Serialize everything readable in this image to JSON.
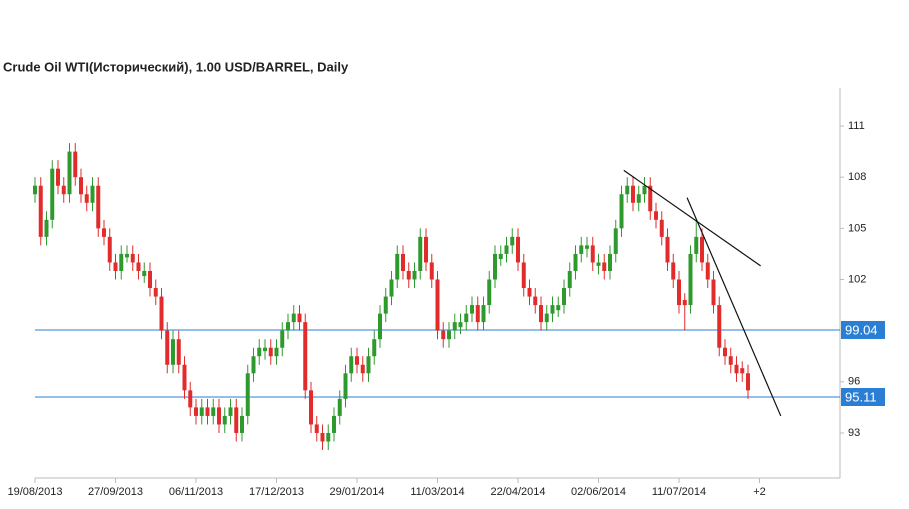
{
  "chart_data": {
    "type": "candlestick",
    "title": "Crude Oil WTI(Исторический), 1.00 USD/BARREL, Daily",
    "ohlc": [
      [
        107,
        108,
        106.5,
        107.5
      ],
      [
        107.5,
        108,
        104,
        104.5
      ],
      [
        104.5,
        106,
        104,
        105.5
      ],
      [
        105.5,
        109,
        105,
        108.5
      ],
      [
        108.5,
        109,
        107,
        107.5
      ],
      [
        107.5,
        108,
        106.5,
        107
      ],
      [
        107,
        110,
        106.5,
        109.5
      ],
      [
        109.5,
        110,
        107.5,
        108
      ],
      [
        108,
        108.5,
        106.5,
        107
      ],
      [
        107,
        107.5,
        106,
        106.5
      ],
      [
        106.5,
        108,
        106,
        107.5
      ],
      [
        107.5,
        108,
        104.5,
        105
      ],
      [
        105,
        105.5,
        104,
        104.5
      ],
      [
        104.5,
        105,
        102.5,
        103
      ],
      [
        103,
        103.5,
        102,
        102.5
      ],
      [
        102.5,
        104,
        102,
        103.5
      ],
      [
        103.3,
        104,
        103,
        103.5
      ],
      [
        103.5,
        104,
        102.5,
        103
      ],
      [
        103,
        103.5,
        102,
        102.5
      ],
      [
        102.2,
        103,
        101.8,
        102.5
      ],
      [
        102.5,
        103,
        101,
        101.5
      ],
      [
        101.5,
        102,
        100.5,
        101
      ],
      [
        101,
        101.5,
        98.5,
        99
      ],
      [
        99,
        99.5,
        96.5,
        97
      ],
      [
        97,
        99,
        96.5,
        98.5
      ],
      [
        98.5,
        99,
        96.5,
        97
      ],
      [
        97,
        97.5,
        95,
        95.5
      ],
      [
        95.5,
        96,
        94,
        94.5
      ],
      [
        94.5,
        95,
        93.5,
        94
      ],
      [
        94,
        95,
        93.5,
        94.5
      ],
      [
        94.5,
        95,
        93.5,
        94
      ],
      [
        94,
        95,
        93.5,
        94.5
      ],
      [
        94.5,
        95,
        93,
        93.5
      ],
      [
        93.5,
        94.5,
        93,
        94
      ],
      [
        94,
        95,
        93.5,
        94.5
      ],
      [
        94.5,
        95,
        92.5,
        93
      ],
      [
        93,
        94.5,
        92.5,
        94
      ],
      [
        94,
        97,
        93.5,
        96.5
      ],
      [
        96.5,
        98,
        96,
        97.5
      ],
      [
        97.5,
        98.5,
        97,
        98
      ],
      [
        97.8,
        98.5,
        97.3,
        98
      ],
      [
        98,
        98.5,
        97,
        97.5
      ],
      [
        97.5,
        98.5,
        97,
        98
      ],
      [
        98,
        99.5,
        97.5,
        99
      ],
      [
        99,
        100,
        98.5,
        99.5
      ],
      [
        99.5,
        100.5,
        99,
        100
      ],
      [
        100,
        100.5,
        99,
        99.5
      ],
      [
        99.5,
        100,
        95,
        95.5
      ],
      [
        95.5,
        96,
        93,
        93.5
      ],
      [
        93.5,
        94,
        92.5,
        93
      ],
      [
        93,
        93.5,
        92,
        92.5
      ],
      [
        92.5,
        93.5,
        92,
        93
      ],
      [
        93,
        94.5,
        92.5,
        94
      ],
      [
        94,
        95.5,
        93.5,
        95
      ],
      [
        95,
        97,
        94.5,
        96.5
      ],
      [
        96.5,
        98,
        96,
        97.5
      ],
      [
        97.5,
        98,
        96.5,
        97
      ],
      [
        97,
        97.5,
        96,
        96.5
      ],
      [
        96.5,
        98,
        96,
        97.5
      ],
      [
        97.5,
        99,
        97,
        98.5
      ],
      [
        98.5,
        100.5,
        98,
        100
      ],
      [
        100,
        101.5,
        99.5,
        101
      ],
      [
        101,
        102.5,
        100.5,
        102
      ],
      [
        102,
        104,
        101.5,
        103.5
      ],
      [
        103.5,
        104,
        102,
        102.5
      ],
      [
        102.5,
        103,
        101.5,
        102
      ],
      [
        102,
        103,
        101.5,
        102.5
      ],
      [
        102.5,
        105,
        102,
        104.5
      ],
      [
        104.5,
        105,
        102.5,
        103
      ],
      [
        103,
        103.5,
        101.5,
        102
      ],
      [
        102,
        102.5,
        98.5,
        99
      ],
      [
        99,
        99.5,
        98,
        98.5
      ],
      [
        98.5,
        99.5,
        98,
        99
      ],
      [
        99,
        100,
        98.5,
        99.5
      ],
      [
        99.2,
        100,
        98.8,
        99.5
      ],
      [
        99.5,
        100.5,
        99,
        100
      ],
      [
        100,
        101,
        99.5,
        100.5
      ],
      [
        100.5,
        101,
        99,
        99.5
      ],
      [
        99.5,
        101,
        99,
        100.5
      ],
      [
        100.5,
        102.5,
        100,
        102
      ],
      [
        102,
        104,
        101.5,
        103.5
      ],
      [
        103.2,
        104,
        102.8,
        103.5
      ],
      [
        103.5,
        104.5,
        103,
        104
      ],
      [
        104,
        105,
        103.5,
        104.5
      ],
      [
        104.5,
        105,
        102.5,
        103
      ],
      [
        103,
        103.5,
        101,
        101.5
      ],
      [
        101.5,
        102,
        100.5,
        101
      ],
      [
        101,
        101.5,
        100,
        100.5
      ],
      [
        100.5,
        101,
        99,
        99.5
      ],
      [
        99.5,
        100.5,
        99,
        100
      ],
      [
        100,
        101,
        99.5,
        100.5
      ],
      [
        100.2,
        101,
        99.8,
        100.5
      ],
      [
        100.5,
        102,
        100,
        101.5
      ],
      [
        101.5,
        103,
        101,
        102.5
      ],
      [
        102.5,
        104,
        102,
        103.5
      ],
      [
        103.5,
        104.5,
        103,
        104
      ],
      [
        103.8,
        104.5,
        103.3,
        104
      ],
      [
        104,
        104.5,
        102.5,
        103
      ],
      [
        102.8,
        103.5,
        102.3,
        103
      ],
      [
        103,
        103.5,
        102,
        102.5
      ],
      [
        102.5,
        104,
        102,
        103.5
      ],
      [
        103.5,
        105.5,
        103,
        105
      ],
      [
        105,
        107.5,
        104.5,
        107
      ],
      [
        107,
        108,
        106.5,
        107.5
      ],
      [
        107.5,
        108,
        106,
        106.5
      ],
      [
        106.5,
        107.5,
        106,
        107
      ],
      [
        107,
        108,
        106.5,
        107.5
      ],
      [
        107.5,
        108,
        105.5,
        106
      ],
      [
        106,
        106.5,
        105,
        105.5
      ],
      [
        105.5,
        106,
        104,
        104.5
      ],
      [
        104.5,
        105,
        102.5,
        103
      ],
      [
        103,
        103.5,
        101.5,
        102
      ],
      [
        102,
        102.5,
        100,
        100.5
      ],
      [
        100.8,
        101.2,
        99,
        100.5
      ],
      [
        100.5,
        104,
        100,
        103.5
      ],
      [
        103.5,
        105.5,
        103,
        104.5
      ],
      [
        104.5,
        105,
        102.5,
        103
      ],
      [
        103,
        103.5,
        101.5,
        102
      ],
      [
        102,
        102.5,
        100,
        100.5
      ],
      [
        100.5,
        101,
        97.5,
        98
      ],
      [
        98,
        98.5,
        97,
        97.5
      ],
      [
        97.5,
        98,
        96.5,
        97
      ],
      [
        97,
        97.5,
        96,
        96.5
      ],
      [
        96.8,
        97.2,
        96,
        96.5
      ],
      [
        96.5,
        97,
        95,
        95.5
      ]
    ],
    "up_color": "#2e9a2e",
    "down_color": "#e22b2b",
    "xlim": [
      0,
      140
    ],
    "xticks": [
      {
        "value": 0,
        "label": "19/08/2013"
      },
      {
        "value": 14,
        "label": "27/09/2013"
      },
      {
        "value": 28,
        "label": "06/11/2013"
      },
      {
        "value": 42,
        "label": "17/12/2013"
      },
      {
        "value": 56,
        "label": "29/01/2014"
      },
      {
        "value": 70,
        "label": "11/03/2014"
      },
      {
        "value": 84,
        "label": "22/04/2014"
      },
      {
        "value": 98,
        "label": "02/06/2014"
      },
      {
        "value": 112,
        "label": "11/07/2014"
      },
      {
        "value": 126,
        "label": "+2"
      }
    ],
    "ylim": [
      90.36,
      113.23
    ],
    "yticks": [
      93,
      96,
      102,
      105,
      108,
      111
    ],
    "levels": [
      99.04,
      95.11
    ],
    "level_color": "#2a7fd4",
    "trendlines": [
      {
        "x": [
          102.4,
          126.2
        ],
        "y": [
          108.4,
          102.8
        ]
      },
      {
        "x": [
          113.4,
          129.7
        ],
        "y": [
          106.8,
          94.0
        ]
      }
    ]
  }
}
